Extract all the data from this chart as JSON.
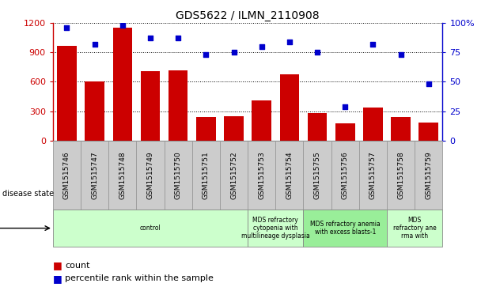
{
  "title": "GDS5622 / ILMN_2110908",
  "samples": [
    "GSM1515746",
    "GSM1515747",
    "GSM1515748",
    "GSM1515749",
    "GSM1515750",
    "GSM1515751",
    "GSM1515752",
    "GSM1515753",
    "GSM1515754",
    "GSM1515755",
    "GSM1515756",
    "GSM1515757",
    "GSM1515758",
    "GSM1515759"
  ],
  "counts": [
    970,
    600,
    1150,
    710,
    720,
    240,
    250,
    410,
    680,
    280,
    175,
    340,
    240,
    185
  ],
  "percentiles": [
    96,
    82,
    98,
    87,
    87,
    73,
    75,
    80,
    84,
    75,
    29,
    82,
    73,
    48
  ],
  "ylim_left": [
    0,
    1200
  ],
  "ylim_right": [
    0,
    100
  ],
  "yticks_left": [
    0,
    300,
    600,
    900,
    1200
  ],
  "yticks_right": [
    0,
    25,
    50,
    75,
    100
  ],
  "bar_color": "#cc0000",
  "dot_color": "#0000cc",
  "tick_label_bg": "#cccccc",
  "tick_label_edge": "#999999",
  "disease_groups": [
    {
      "label": "control",
      "start": 0,
      "end": 7,
      "color": "#ccffcc"
    },
    {
      "label": "MDS refractory\ncytopenia with\nmultilineage dysplasia",
      "start": 7,
      "end": 9,
      "color": "#ccffcc"
    },
    {
      "label": "MDS refractory anemia\nwith excess blasts-1",
      "start": 9,
      "end": 12,
      "color": "#99ee99"
    },
    {
      "label": "MDS\nrefractory ane\nrma with",
      "start": 12,
      "end": 14,
      "color": "#ccffcc"
    }
  ],
  "disease_state_label": "disease state",
  "legend": [
    {
      "label": "count",
      "color": "#cc0000"
    },
    {
      "label": "percentile rank within the sample",
      "color": "#0000cc"
    }
  ]
}
